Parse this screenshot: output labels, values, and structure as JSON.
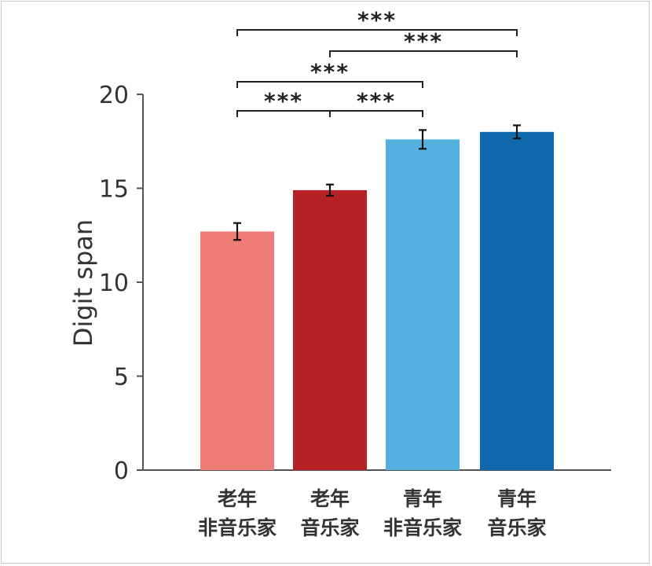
{
  "chart_data": {
    "type": "bar",
    "title": "",
    "xlabel": "",
    "ylabel": "Digit span",
    "ylim": [
      0,
      20
    ],
    "yticks": [
      0,
      5,
      10,
      15,
      20
    ],
    "grid": false,
    "categories": [
      {
        "line1": "老年",
        "line2": "非音乐家"
      },
      {
        "line1": "老年",
        "line2": "音乐家"
      },
      {
        "line1": "青年",
        "line2": "非音乐家"
      },
      {
        "line1": "青年",
        "line2": "音乐家"
      }
    ],
    "values": [
      12.7,
      14.9,
      17.6,
      18.0
    ],
    "errors": [
      0.45,
      0.3,
      0.5,
      0.35
    ],
    "colors": [
      "#ed7b76",
      "#b62225",
      "#52b1de",
      "#0f68ab"
    ],
    "significance": [
      {
        "from": 0,
        "to": 1,
        "label": "***"
      },
      {
        "from": 1,
        "to": 2,
        "label": "***"
      },
      {
        "from": 0,
        "to": 2,
        "label": "***"
      },
      {
        "from": 1,
        "to": 3,
        "label": "***"
      },
      {
        "from": 0,
        "to": 3,
        "label": "***"
      }
    ]
  }
}
